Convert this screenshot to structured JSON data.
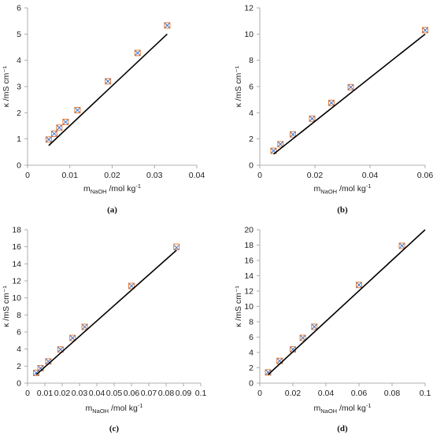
{
  "chart_data": [
    {
      "id": "a",
      "type": "scatter",
      "panel_label": "(a)",
      "xlabel": {
        "base": "m",
        "sub": "NaOH",
        "rest": " /mol kg",
        "sup": "-1"
      },
      "ylabel": "κ /mS cm⁻¹",
      "xlim": [
        0,
        0.04
      ],
      "ylim": [
        0,
        6
      ],
      "xticks": [
        0,
        0.01,
        0.02,
        0.03,
        0.04
      ],
      "yticks": [
        0,
        1,
        2,
        3,
        4,
        5,
        6
      ],
      "series": [
        {
          "marker": "square",
          "color": "#ED7D31",
          "x": [
            0.005,
            0.0063,
            0.0075,
            0.009,
            0.0118,
            0.019,
            0.026,
            0.033
          ],
          "y": [
            0.98,
            1.2,
            1.43,
            1.65,
            2.1,
            3.2,
            4.28,
            5.33
          ]
        },
        {
          "marker": "cross",
          "color": "#4472C4",
          "x": [
            0.005,
            0.0063,
            0.0075,
            0.009,
            0.0118,
            0.019,
            0.026,
            0.033
          ],
          "y": [
            0.98,
            1.2,
            1.43,
            1.65,
            2.1,
            3.2,
            4.28,
            5.33
          ]
        },
        {
          "marker": "line",
          "color": "#000000",
          "x": [
            0.005,
            0.033
          ],
          "y": [
            0.75,
            5.0
          ]
        }
      ]
    },
    {
      "id": "b",
      "type": "scatter",
      "panel_label": "(b)",
      "xlabel": {
        "base": "m",
        "sub": "NaOH",
        "rest": " /mol kg",
        "sup": "-1"
      },
      "ylabel": "κ /mS cm⁻¹",
      "xlim": [
        0,
        0.06
      ],
      "ylim": [
        0,
        12
      ],
      "xticks": [
        0,
        0.02,
        0.04,
        0.06
      ],
      "yticks": [
        0,
        2,
        4,
        6,
        8,
        10,
        12
      ],
      "series": [
        {
          "marker": "square",
          "color": "#ED7D31",
          "x": [
            0.005,
            0.0075,
            0.012,
            0.019,
            0.026,
            0.033,
            0.06
          ],
          "y": [
            1.1,
            1.6,
            2.35,
            3.55,
            4.75,
            5.95,
            10.3
          ]
        },
        {
          "marker": "cross",
          "color": "#4472C4",
          "x": [
            0.005,
            0.0075,
            0.012,
            0.019,
            0.026,
            0.033,
            0.06
          ],
          "y": [
            1.1,
            1.6,
            2.35,
            3.55,
            4.75,
            5.95,
            10.3
          ]
        },
        {
          "marker": "line",
          "color": "#000000",
          "x": [
            0.005,
            0.06
          ],
          "y": [
            0.85,
            10.0
          ]
        }
      ]
    },
    {
      "id": "c",
      "type": "scatter",
      "panel_label": "(c)",
      "xlabel": {
        "base": "m",
        "sub": "NaOH",
        "rest": " /mol kg",
        "sup": "-1"
      },
      "ylabel": "κ /mS cm⁻¹",
      "xlim": [
        0,
        0.1
      ],
      "ylim": [
        0,
        18
      ],
      "xticks": [
        0,
        0.01,
        0.02,
        0.03,
        0.04,
        0.05,
        0.06,
        0.07,
        0.08,
        0.09,
        0.1
      ],
      "yticks": [
        0,
        2,
        4,
        6,
        8,
        10,
        12,
        14,
        16,
        18
      ],
      "series": [
        {
          "marker": "square",
          "color": "#ED7D31",
          "x": [
            0.005,
            0.0075,
            0.012,
            0.019,
            0.026,
            0.033,
            0.06,
            0.086
          ],
          "y": [
            1.2,
            1.75,
            2.55,
            3.95,
            5.3,
            6.6,
            11.4,
            16.0
          ]
        },
        {
          "marker": "cross",
          "color": "#4472C4",
          "x": [
            0.005,
            0.0075,
            0.012,
            0.019,
            0.026,
            0.033,
            0.06,
            0.086
          ],
          "y": [
            1.2,
            1.75,
            2.55,
            3.95,
            5.3,
            6.6,
            11.4,
            15.9
          ]
        },
        {
          "marker": "line",
          "color": "#000000",
          "x": [
            0.005,
            0.086
          ],
          "y": [
            1.0,
            15.6
          ]
        }
      ]
    },
    {
      "id": "d",
      "type": "scatter",
      "panel_label": "(d)",
      "xlabel": {
        "base": "m",
        "sub": "NaOH",
        "rest": " /mol kg",
        "sup": "-1"
      },
      "ylabel": "κ /mS cm⁻¹",
      "xlim": [
        0,
        0.1
      ],
      "ylim": [
        0,
        20
      ],
      "xticks": [
        0,
        0.02,
        0.04,
        0.06,
        0.08,
        0.1
      ],
      "yticks": [
        0,
        2,
        4,
        6,
        8,
        10,
        12,
        14,
        16,
        18,
        20
      ],
      "series": [
        {
          "marker": "square",
          "color": "#ED7D31",
          "x": [
            0.005,
            0.012,
            0.02,
            0.026,
            0.033,
            0.06,
            0.086
          ],
          "y": [
            1.4,
            2.9,
            4.4,
            5.9,
            7.35,
            12.8,
            17.9
          ]
        },
        {
          "marker": "cross",
          "color": "#4472C4",
          "x": [
            0.005,
            0.012,
            0.02,
            0.026,
            0.033,
            0.06,
            0.086
          ],
          "y": [
            1.4,
            2.9,
            4.4,
            5.9,
            7.35,
            12.8,
            17.9
          ]
        },
        {
          "marker": "line",
          "color": "#000000",
          "x": [
            0.005,
            0.1
          ],
          "y": [
            1.1,
            20.0
          ]
        }
      ]
    }
  ]
}
